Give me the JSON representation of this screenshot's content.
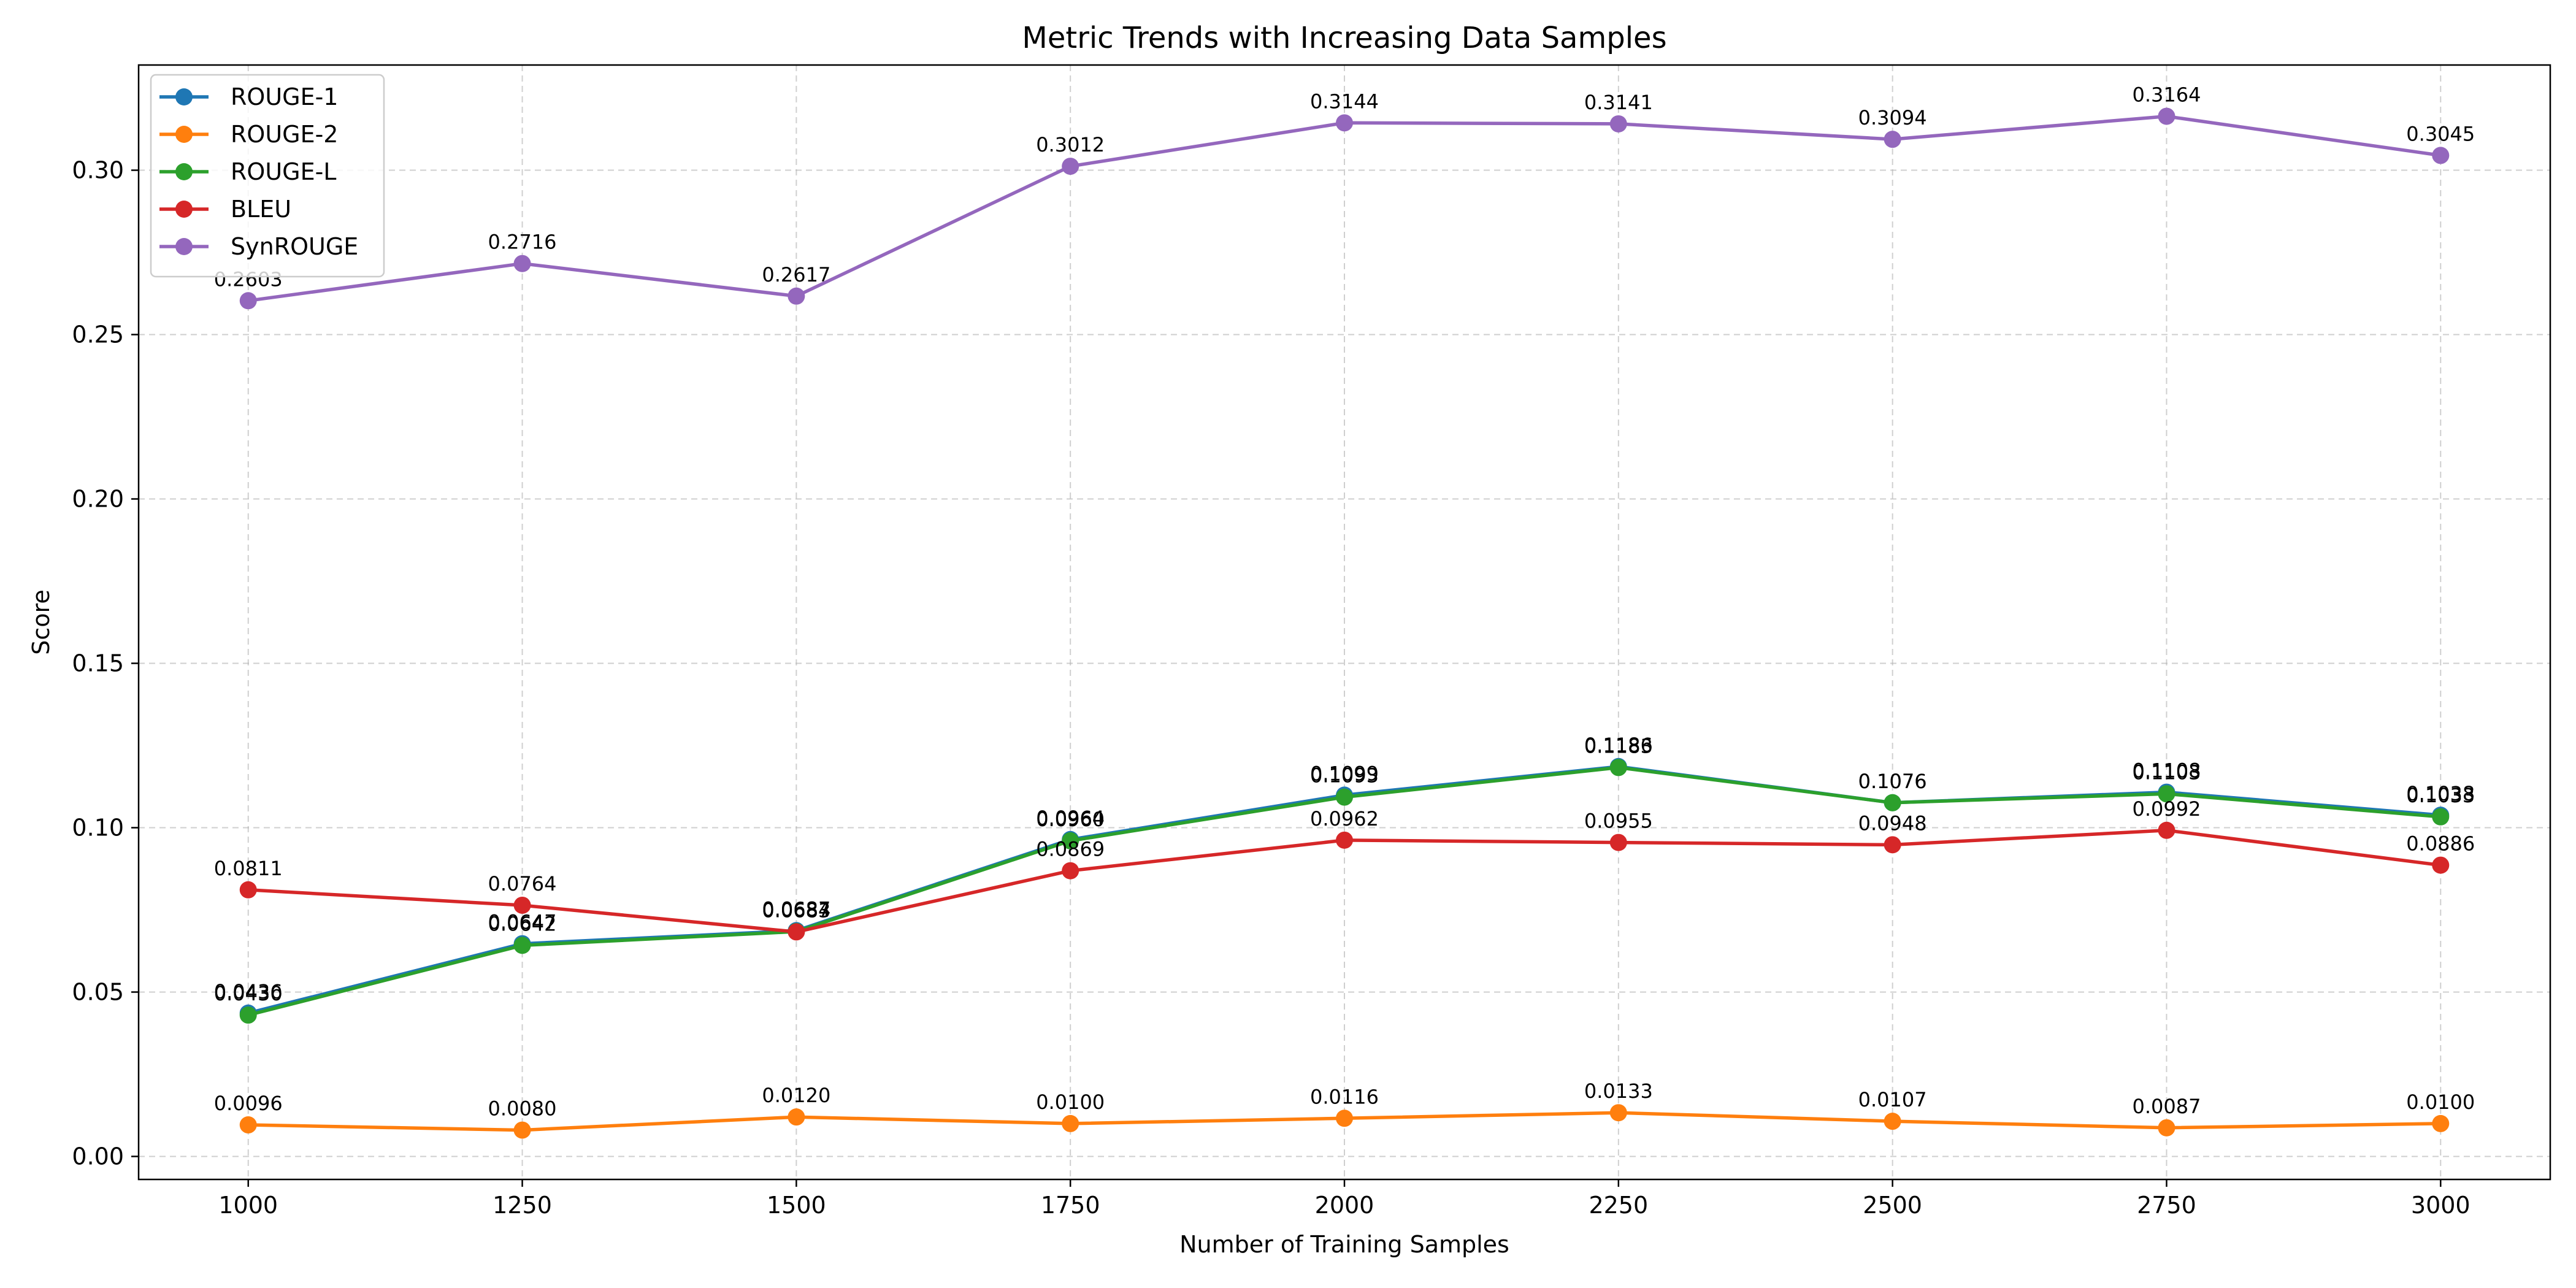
{
  "chart_data": {
    "type": "line",
    "title": "Metric Trends with Increasing Data Samples",
    "xlabel": "Number of Training Samples",
    "ylabel": "Score",
    "x": [
      1000,
      1250,
      1500,
      1750,
      2000,
      2250,
      2500,
      2750,
      3000
    ],
    "xticks": [
      "1000",
      "1250",
      "1500",
      "1750",
      "2000",
      "2250",
      "2500",
      "2750",
      "3000"
    ],
    "xlim": [
      900,
      3100
    ],
    "ylim": [
      -0.007,
      0.332
    ],
    "yticks": [
      "0.00",
      "0.05",
      "0.10",
      "0.15",
      "0.20",
      "0.25",
      "0.30"
    ],
    "grid": true,
    "legend_position": "top-left",
    "series": [
      {
        "name": "ROUGE-1",
        "color": "#1f77b4",
        "values": [
          0.0436,
          0.0647,
          0.0687,
          0.0964,
          0.1099,
          0.1186,
          0.1076,
          0.1108,
          0.1038
        ],
        "labels": [
          "0.0436",
          "0.0647",
          "0.0687",
          "0.0964",
          "0.1099",
          "0.1186",
          "0.1076",
          "0.1108",
          "0.1038"
        ]
      },
      {
        "name": "ROUGE-2",
        "color": "#ff7f0e",
        "values": [
          0.0096,
          0.008,
          0.012,
          0.01,
          0.0116,
          0.0133,
          0.0107,
          0.0087,
          0.01
        ],
        "labels": [
          "0.0096",
          "0.0080",
          "0.0120",
          "0.0100",
          "0.0116",
          "0.0133",
          "0.0107",
          "0.0087",
          "0.0100"
        ]
      },
      {
        "name": "ROUGE-L",
        "color": "#2ca02c",
        "values": [
          0.043,
          0.0642,
          0.0684,
          0.096,
          0.1093,
          0.1183,
          0.1076,
          0.1103,
          0.1033
        ],
        "labels": [
          "0.0430",
          "0.0642",
          "0.0684",
          "0.0960",
          "0.1093",
          "0.1183",
          "0.1076",
          "0.1103",
          "0.1033"
        ]
      },
      {
        "name": "BLEU",
        "color": "#d62728",
        "values": [
          0.0811,
          0.0764,
          0.0683,
          0.0869,
          0.0962,
          0.0955,
          0.0948,
          0.0992,
          0.0886
        ],
        "labels": [
          "0.0811",
          "0.0764",
          "0.0683",
          "0.0869",
          "0.0962",
          "0.0955",
          "0.0948",
          "0.0992",
          "0.0886"
        ]
      },
      {
        "name": "SynROUGE",
        "color": "#9467bd",
        "values": [
          0.2603,
          0.2716,
          0.2617,
          0.3012,
          0.3144,
          0.3141,
          0.3094,
          0.3164,
          0.3045
        ],
        "labels": [
          "0.2603",
          "0.2716",
          "0.2617",
          "0.3012",
          "0.3144",
          "0.3141",
          "0.3094",
          "0.3164",
          "0.3045"
        ]
      }
    ]
  }
}
